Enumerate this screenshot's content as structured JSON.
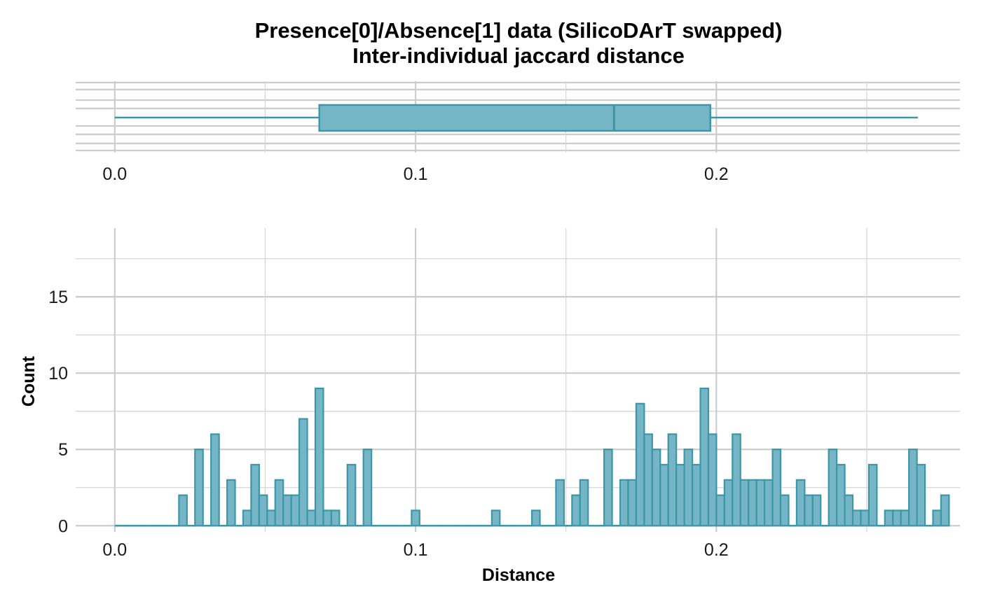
{
  "chart_data": [
    {
      "type": "boxplot",
      "title": "Presence[0]/Absence[1] data (SilicoDArT swapped)",
      "subtitle": "Inter-individual jaccard distance",
      "min": 0.0,
      "q1": 0.068,
      "median": 0.166,
      "q3": 0.198,
      "max": 0.267,
      "x_ticks": [
        "0.0",
        "0.1",
        "0.2"
      ],
      "xlim": [
        -0.013,
        0.281
      ],
      "grid": true
    },
    {
      "type": "histogram",
      "xlabel": "Distance",
      "ylabel": "Count",
      "bin_width": 0.002667,
      "first_bin_center": 0.00133,
      "counts": [
        0,
        0,
        0,
        0,
        0,
        0,
        0,
        0,
        2,
        0,
        5,
        0,
        6,
        0,
        3,
        0,
        1,
        4,
        2,
        1,
        3,
        2,
        2,
        7,
        1,
        9,
        1,
        1,
        0,
        4,
        0,
        5,
        0,
        0,
        0,
        0,
        0,
        1,
        0,
        0,
        0,
        0,
        0,
        0,
        0,
        0,
        0,
        1,
        0,
        0,
        0,
        0,
        1,
        0,
        0,
        3,
        0,
        2,
        3,
        0,
        0,
        5,
        0,
        3,
        3,
        8,
        6,
        5,
        4,
        6,
        4,
        5,
        4,
        9,
        6,
        2,
        3,
        6,
        3,
        3,
        3,
        3,
        5,
        2,
        0,
        3,
        2,
        2,
        0,
        5,
        4,
        2,
        1,
        1,
        4,
        0,
        1,
        1,
        1,
        5,
        4,
        0,
        1,
        2
      ],
      "x_ticks": [
        "0.0",
        "0.1",
        "0.2"
      ],
      "y_ticks": [
        "0",
        "5",
        "10",
        "15"
      ],
      "xlim": [
        -0.013,
        0.281
      ],
      "ylim": [
        -0.4,
        19.5
      ],
      "grid": true
    }
  ],
  "colors": {
    "fill": "#76b5c5",
    "stroke": "#3a97a8",
    "grid": "#cccccc"
  }
}
